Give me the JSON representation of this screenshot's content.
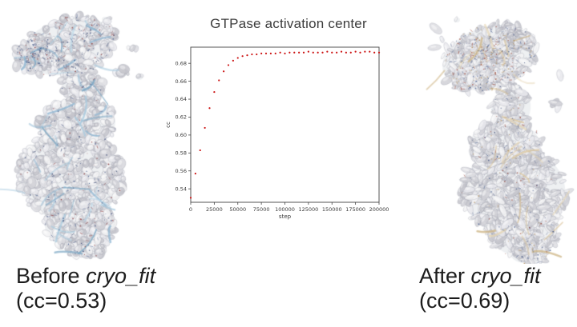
{
  "slide": {
    "background": "#ffffff"
  },
  "chart_data": {
    "type": "scatter",
    "title": "GTPase activation center",
    "xlabel": "step",
    "ylabel": "cc",
    "xlim": [
      0,
      200000
    ],
    "ylim": [
      0.525,
      0.698
    ],
    "x_ticks": [
      0,
      25000,
      50000,
      75000,
      100000,
      125000,
      150000,
      175000,
      200000
    ],
    "y_ticks": [
      0.54,
      0.56,
      0.58,
      0.6,
      0.62,
      0.64,
      0.66,
      0.68
    ],
    "grid": false,
    "legend": "none",
    "marker_color": "#cc1414",
    "axis_color": "#444444",
    "tick_label_color": "#3a3a3a",
    "x": [
      0,
      5000,
      10000,
      15000,
      20000,
      25000,
      30000,
      35000,
      40000,
      45000,
      50000,
      55000,
      60000,
      65000,
      70000,
      75000,
      80000,
      85000,
      90000,
      95000,
      100000,
      105000,
      110000,
      115000,
      120000,
      125000,
      130000,
      135000,
      140000,
      145000,
      150000,
      155000,
      160000,
      165000,
      170000,
      175000,
      180000,
      185000,
      190000,
      195000,
      200000
    ],
    "y": [
      0.53,
      0.557,
      0.583,
      0.608,
      0.63,
      0.648,
      0.661,
      0.671,
      0.678,
      0.683,
      0.686,
      0.688,
      0.689,
      0.69,
      0.69,
      0.691,
      0.691,
      0.691,
      0.691,
      0.692,
      0.691,
      0.692,
      0.692,
      0.692,
      0.692,
      0.693,
      0.692,
      0.692,
      0.692,
      0.693,
      0.692,
      0.692,
      0.693,
      0.692,
      0.692,
      0.693,
      0.692,
      0.693,
      0.693,
      0.692,
      0.692
    ]
  },
  "left_figure": {
    "caption_prefix": "Before ",
    "caption_italic": "cryo_fit",
    "caption_line2": "(cc=0.53)",
    "map_color": "#dcdce1",
    "ribbon_color": "#a9cbdf"
  },
  "right_figure": {
    "caption_prefix": "After ",
    "caption_italic": "cryo_fit",
    "caption_line2": "(cc=0.69)",
    "map_color": "#dcdce1",
    "ribbon_color": "#d9c59c"
  }
}
